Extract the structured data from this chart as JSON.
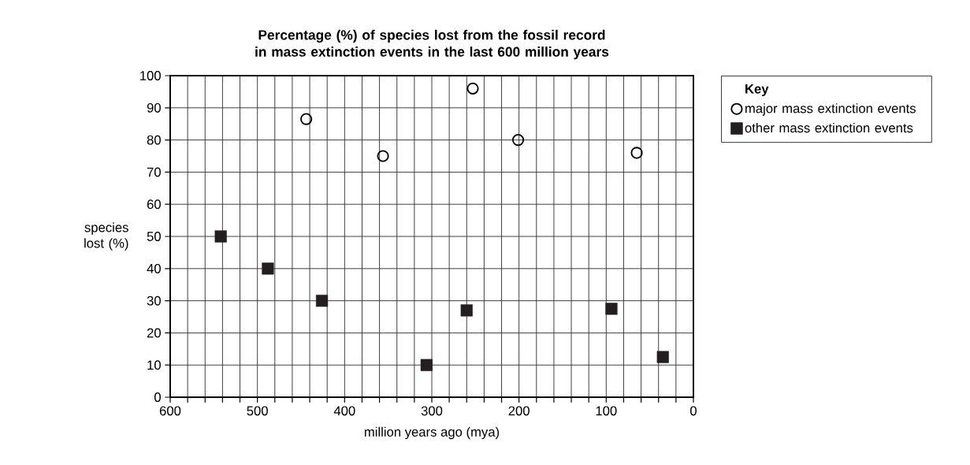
{
  "chart_data": {
    "type": "scatter",
    "title": "Percentage (%) of species lost from the fossil record in mass extinction events in the last 600 million years",
    "xlabel": "million years ago (mya)",
    "ylabel": "species lost (%)",
    "legend_title": "Key",
    "xlim": [
      600,
      0
    ],
    "xticks": [
      600,
      {
        "value": 580,
        "label": null
      },
      {
        "value": 560,
        "label": null
      },
      {
        "value": 540,
        "label": null
      },
      {
        "value": 520,
        "label": null
      },
      500,
      {
        "value": 480,
        "label": null
      },
      {
        "value": 460,
        "label": null
      },
      {
        "value": 440,
        "label": null
      },
      {
        "value": 420,
        "label": null
      },
      400,
      {
        "value": 380,
        "label": null
      },
      {
        "value": 360,
        "label": null
      },
      {
        "value": 340,
        "label": null
      },
      {
        "value": 320,
        "label": null
      },
      300,
      {
        "value": 280,
        "label": null
      },
      {
        "value": 260,
        "label": null
      },
      {
        "value": 240,
        "label": null
      },
      {
        "value": 220,
        "label": null
      },
      200,
      {
        "value": 180,
        "label": null
      },
      {
        "value": 160,
        "label": null
      },
      {
        "value": 140,
        "label": null
      },
      {
        "value": 120,
        "label": null
      },
      100,
      {
        "value": 80,
        "label": null
      },
      {
        "value": 60,
        "label": null
      },
      {
        "value": 40,
        "label": null
      },
      {
        "value": 20,
        "label": null
      },
      0
    ],
    "ylim": [
      0,
      100
    ],
    "yticks": [
      0,
      10,
      20,
      30,
      40,
      50,
      60,
      70,
      80,
      90,
      100
    ],
    "grid": true,
    "legend": "right",
    "series": [
      {
        "name": "major mass extinction events",
        "color": "#000000",
        "marker": "circle",
        "x": [
          444,
          356,
          253,
          201,
          65
        ],
        "values": [
          86.5,
          75,
          96,
          80,
          76
        ]
      },
      {
        "name": "other mass extinction events",
        "color": "#231f20",
        "marker": "square",
        "x": [
          542,
          488,
          426,
          306,
          260,
          94,
          35
        ],
        "values": [
          50,
          40,
          30,
          10,
          27,
          27.5,
          12.5
        ]
      }
    ]
  }
}
